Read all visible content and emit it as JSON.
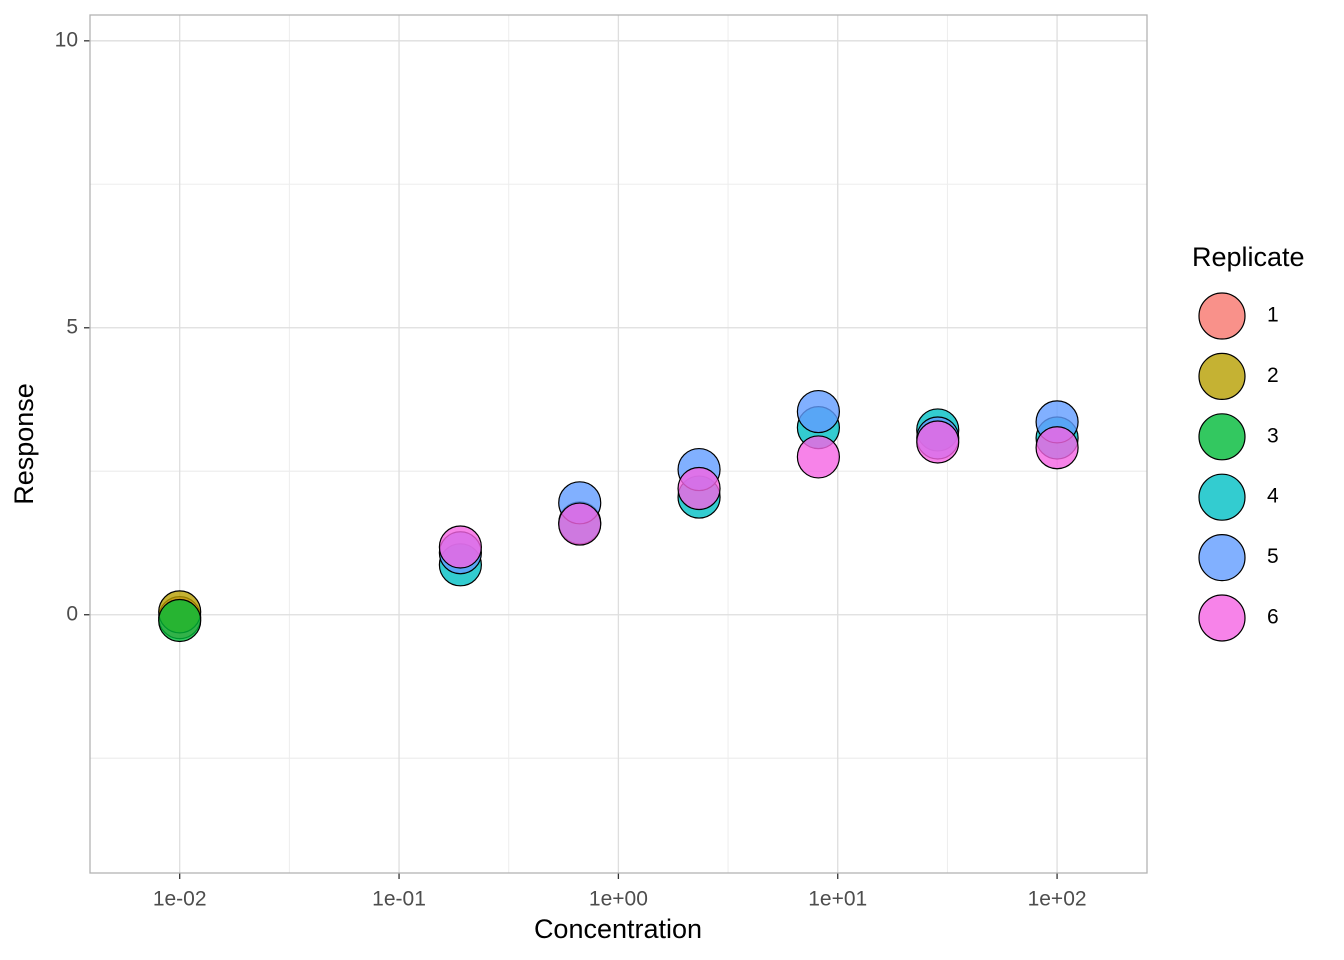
{
  "chart_data": {
    "type": "scatter",
    "x_label": "Concentration",
    "y_label": "Response",
    "legend_title": "Replicate",
    "x_scale": "log",
    "grid": true,
    "legend_position": "right",
    "xlim": [
      0.0039,
      257
    ],
    "ylim": [
      -4.5,
      10.45
    ],
    "xticks": [
      {
        "value": 0.01,
        "label": "1e-02"
      },
      {
        "value": 0.1,
        "label": "1e-01"
      },
      {
        "value": 1,
        "label": "1e+00"
      },
      {
        "value": 10,
        "label": "1e+01"
      },
      {
        "value": 100,
        "label": "1e+02"
      }
    ],
    "yticks": [
      0,
      5,
      10
    ],
    "series": [
      {
        "name": "1",
        "color": "#F8766D",
        "x": [
          0.01
        ],
        "values": [
          -0.05
        ]
      },
      {
        "name": "2",
        "color": "#B79F00",
        "x": [
          0.01
        ],
        "values": [
          0.05
        ]
      },
      {
        "name": "3",
        "color": "#00BA38",
        "x": [
          0.01
        ],
        "values": [
          -0.1
        ]
      },
      {
        "name": "4",
        "color": "#00BFC4",
        "x": [
          0.1904,
          0.6664,
          2.332,
          8.163,
          28.57,
          100
        ],
        "values": [
          0.87,
          1.6,
          2.05,
          3.26,
          3.22,
          3.08
        ]
      },
      {
        "name": "5",
        "color": "#619CFF",
        "x": [
          0.1904,
          0.6664,
          2.332,
          8.163,
          28.57,
          100
        ],
        "values": [
          1.08,
          1.95,
          2.53,
          3.54,
          3.08,
          3.36
        ]
      },
      {
        "name": "6",
        "color": "#F564E3",
        "x": [
          0.1904,
          0.6664,
          2.332,
          8.163,
          28.57,
          100
        ],
        "values": [
          1.18,
          1.58,
          2.2,
          2.75,
          3.01,
          2.91
        ]
      }
    ]
  }
}
